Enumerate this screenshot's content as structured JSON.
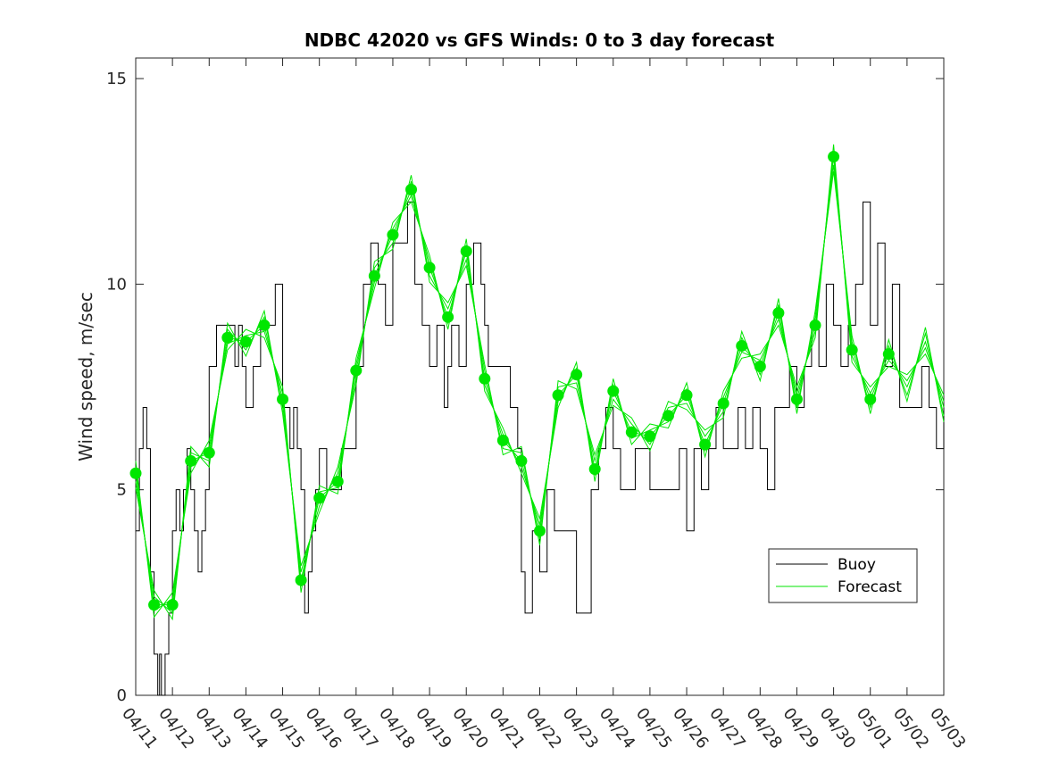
{
  "chart_data": {
    "type": "line",
    "title": "NDBC 42020 vs GFS Winds: 0 to 3 day forecast",
    "xlabel": "",
    "ylabel": "Wind speed, m/sec",
    "x_ticks": [
      "04/11",
      "04/12",
      "04/13",
      "04/14",
      "04/15",
      "04/16",
      "04/17",
      "04/18",
      "04/19",
      "04/20",
      "04/21",
      "04/22",
      "04/23",
      "04/24",
      "04/25",
      "04/26",
      "04/27",
      "04/28",
      "04/29",
      "04/30",
      "05/01",
      "05/02",
      "05/03"
    ],
    "xlim": [
      "04/11 00:00",
      "05/03 00:00"
    ],
    "ylim": [
      0,
      15.5
    ],
    "y_ticks": [
      0,
      5,
      10,
      15
    ],
    "grid": false,
    "legend_position": "lower-right",
    "colors": {
      "buoy": "#000000",
      "forecast": "#00e600"
    },
    "series": [
      {
        "name": "Buoy",
        "style": "step",
        "x_days": [
          0,
          0.1,
          0.2,
          0.3,
          0.4,
          0.5,
          0.55,
          0.6,
          0.65,
          0.7,
          0.8,
          0.9,
          1.0,
          1.1,
          1.2,
          1.3,
          1.4,
          1.5,
          1.6,
          1.7,
          1.8,
          1.9,
          2.0,
          2.1,
          2.2,
          2.3,
          2.5,
          2.6,
          2.7,
          2.8,
          2.9,
          3.0,
          3.2,
          3.4,
          3.6,
          3.8,
          4.0,
          4.2,
          4.3,
          4.4,
          4.5,
          4.6,
          4.7,
          4.8,
          4.9,
          5.0,
          5.2,
          5.4,
          5.6,
          5.8,
          6.0,
          6.2,
          6.4,
          6.6,
          6.8,
          7.0,
          7.2,
          7.4,
          7.6,
          7.8,
          8.0,
          8.2,
          8.4,
          8.5,
          8.6,
          8.8,
          9.0,
          9.2,
          9.4,
          9.5,
          9.6,
          9.8,
          10.0,
          10.2,
          10.4,
          10.5,
          10.6,
          10.8,
          11.0,
          11.2,
          11.4,
          11.6,
          11.8,
          12.0,
          12.2,
          12.4,
          12.6,
          12.8,
          13.0,
          13.2,
          13.4,
          13.6,
          13.8,
          14.0,
          14.2,
          14.4,
          14.6,
          14.8,
          15.0,
          15.2,
          15.4,
          15.6,
          15.8,
          16.0,
          16.2,
          16.4,
          16.6,
          16.8,
          17.0,
          17.2,
          17.4,
          17.6,
          17.8,
          18.0,
          18.2,
          18.4,
          18.6,
          18.8,
          19.0,
          19.2,
          19.4,
          19.6,
          19.8,
          20.0,
          20.2,
          20.4,
          20.6,
          20.8,
          21.0,
          21.2,
          21.4,
          21.6,
          21.8,
          22.0
        ],
        "values": [
          4,
          6,
          7,
          6,
          3,
          1,
          1,
          0,
          1,
          0,
          1,
          2,
          4,
          5,
          4,
          5,
          6,
          5,
          4,
          3,
          4,
          5,
          8,
          8,
          9,
          9,
          9,
          9,
          8,
          9,
          8,
          7,
          8,
          9,
          9,
          10,
          7,
          6,
          7,
          6,
          5,
          2,
          3,
          4,
          5,
          6,
          5,
          5,
          6,
          6,
          8,
          10,
          11,
          10,
          9,
          11,
          11,
          12,
          10,
          9,
          8,
          9,
          7,
          8,
          9,
          8,
          10,
          11,
          10,
          9,
          8,
          8,
          8,
          7,
          6,
          3,
          2,
          4,
          3,
          5,
          4,
          4,
          4,
          2,
          2,
          5,
          6,
          7,
          6,
          5,
          5,
          6,
          6,
          5,
          5,
          5,
          5,
          6,
          4,
          6,
          5,
          6,
          7,
          6,
          6,
          7,
          6,
          7,
          6,
          5,
          7,
          7,
          8,
          7,
          8,
          9,
          8,
          10,
          9,
          8,
          9,
          10,
          12,
          9,
          11,
          8,
          10,
          7,
          7,
          7,
          8,
          7,
          6,
          7
        ]
      },
      {
        "name": "Forecast",
        "style": "line",
        "x_days": [
          0,
          0.5,
          1,
          1.5,
          2,
          2.5,
          3,
          3.5,
          4,
          4.5,
          5,
          5.5,
          6,
          6.5,
          7,
          7.5,
          8,
          8.5,
          9,
          9.5,
          10,
          10.5,
          11,
          11.5,
          12,
          12.5,
          13,
          13.5,
          14,
          14.5,
          15,
          15.5,
          16,
          16.5,
          17,
          17.5,
          18,
          18.5,
          19,
          19.5,
          20,
          20.5,
          21,
          21.5,
          22
        ],
        "values": [
          5.4,
          2.2,
          2.2,
          5.7,
          5.9,
          8.7,
          8.6,
          9.0,
          7.2,
          2.8,
          4.8,
          5.2,
          7.9,
          10.2,
          11.2,
          12.3,
          10.4,
          9.2,
          10.8,
          7.7,
          6.2,
          5.7,
          4.0,
          7.3,
          7.8,
          5.5,
          7.4,
          6.4,
          6.3,
          6.8,
          7.3,
          6.1,
          7.1,
          8.5,
          8.0,
          9.3,
          7.2,
          9.0,
          13.1,
          8.4,
          7.2,
          8.3,
          7.5,
          8.6,
          7.0
        ]
      }
    ],
    "markers": {
      "x_days": [
        0,
        0.5,
        1,
        1.5,
        2,
        2.5,
        3,
        3.5,
        4,
        4.5,
        5,
        5.5,
        6,
        6.5,
        7,
        7.5,
        8,
        8.5,
        9,
        9.5,
        10,
        10.5,
        11,
        11.5,
        12,
        12.5,
        13,
        13.5,
        14,
        14.5,
        15,
        15.5,
        16,
        16.5,
        17,
        17.5,
        18,
        18.5,
        19,
        19.5,
        20,
        20.5
      ],
      "values": [
        5.4,
        2.2,
        2.2,
        5.7,
        5.9,
        8.7,
        8.6,
        9.0,
        7.2,
        2.8,
        4.8,
        5.2,
        7.9,
        10.2,
        11.2,
        12.3,
        10.4,
        9.2,
        10.8,
        7.7,
        6.2,
        5.7,
        4.0,
        7.3,
        7.8,
        5.5,
        7.4,
        6.4,
        6.3,
        6.8,
        7.3,
        6.1,
        7.1,
        8.5,
        8.0,
        9.3,
        7.2,
        9.0,
        13.1,
        8.4,
        7.2,
        8.3
      ]
    }
  }
}
